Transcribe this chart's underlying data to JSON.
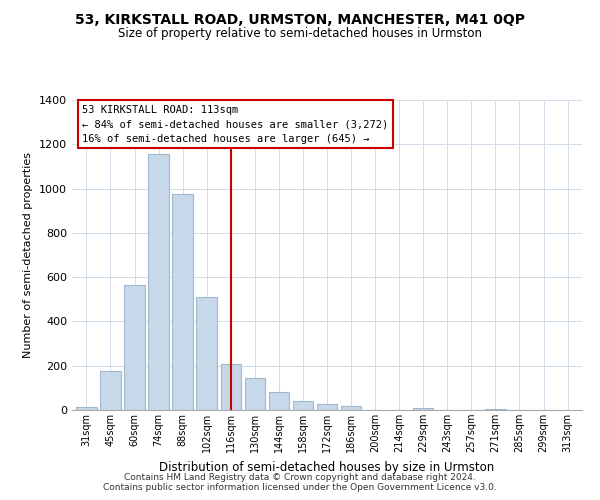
{
  "title": "53, KIRKSTALL ROAD, URMSTON, MANCHESTER, M41 0QP",
  "subtitle": "Size of property relative to semi-detached houses in Urmston",
  "xlabel": "Distribution of semi-detached houses by size in Urmston",
  "ylabel": "Number of semi-detached properties",
  "bar_color": "#c8d8eb",
  "bar_edge_color": "#a0b8cc",
  "categories": [
    "31sqm",
    "45sqm",
    "60sqm",
    "74sqm",
    "88sqm",
    "102sqm",
    "116sqm",
    "130sqm",
    "144sqm",
    "158sqm",
    "172sqm",
    "186sqm",
    "200sqm",
    "214sqm",
    "229sqm",
    "243sqm",
    "257sqm",
    "271sqm",
    "285sqm",
    "299sqm",
    "313sqm"
  ],
  "values": [
    15,
    175,
    565,
    1155,
    975,
    510,
    210,
    145,
    80,
    40,
    25,
    20,
    0,
    0,
    10,
    0,
    0,
    5,
    0,
    0,
    2
  ],
  "vline_x": 6,
  "vline_color": "#cc0000",
  "annotation_title": "53 KIRKSTALL ROAD: 113sqm",
  "annotation_line1": "← 84% of semi-detached houses are smaller (3,272)",
  "annotation_line2": "16% of semi-detached houses are larger (645) →",
  "annotation_box_color": "#ffffff",
  "annotation_box_edge": "#cc0000",
  "ylim": [
    0,
    1400
  ],
  "yticks": [
    0,
    200,
    400,
    600,
    800,
    1000,
    1200,
    1400
  ],
  "footer1": "Contains HM Land Registry data © Crown copyright and database right 2024.",
  "footer2": "Contains public sector information licensed under the Open Government Licence v3.0."
}
